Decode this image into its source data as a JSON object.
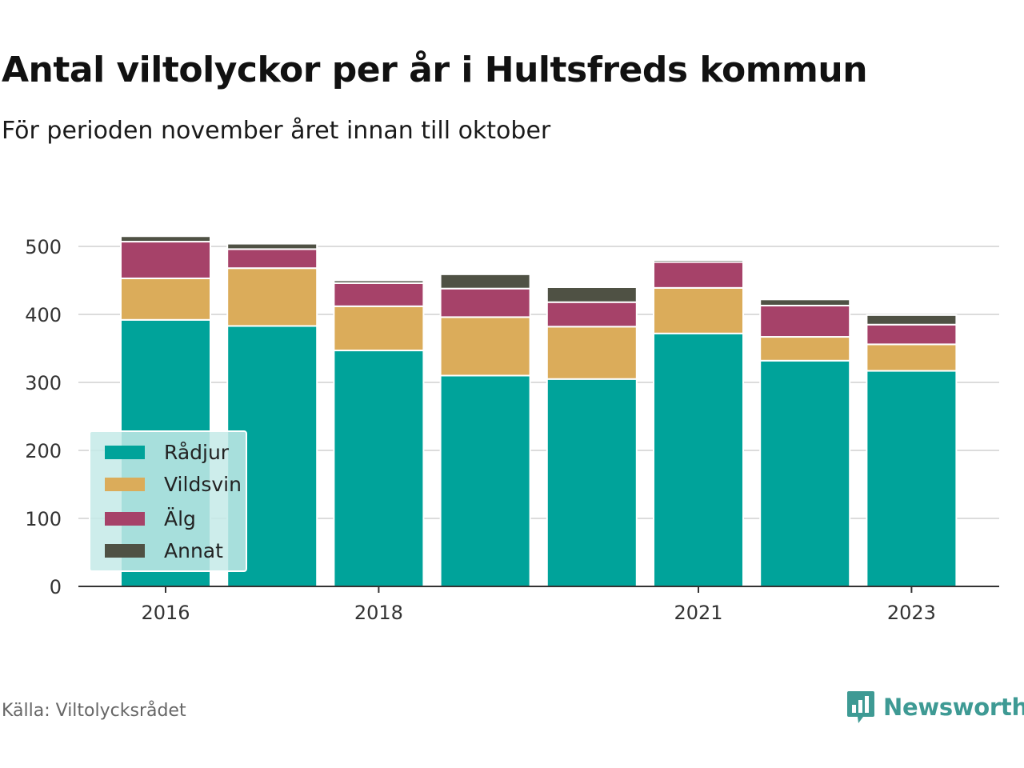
{
  "header": {
    "title": "Antal viltolyckor per år i Hultsfreds kommun",
    "subtitle": "För perioden november året innan till oktober"
  },
  "footer": {
    "source": "Källa: Viltolycksrådet",
    "brand": "Newsworthy",
    "brand_icon": "bar-chart-speech-bubble-icon",
    "brand_color": "#3e9a94"
  },
  "chart_data": {
    "type": "bar",
    "stacked": true,
    "categories": [
      "2016",
      "2017",
      "2018",
      "2019",
      "2020",
      "2021",
      "2022",
      "2023"
    ],
    "x_tick_labels": [
      "2016",
      "2018",
      "2021",
      "2023"
    ],
    "series": [
      {
        "name": "Rådjur",
        "color": "#00a39a",
        "values": [
          392,
          383,
          347,
          310,
          305,
          372,
          332,
          317
        ]
      },
      {
        "name": "Vildsvin",
        "color": "#dbac5a",
        "values": [
          61,
          85,
          65,
          86,
          77,
          67,
          35,
          39
        ]
      },
      {
        "name": "Älg",
        "color": "#a64269",
        "values": [
          54,
          28,
          34,
          42,
          36,
          38,
          46,
          29
        ]
      },
      {
        "name": "Annat",
        "color": "#4f5144",
        "values": [
          8,
          8,
          4,
          21,
          22,
          3,
          9,
          14
        ]
      }
    ],
    "yticks": [
      0,
      100,
      200,
      300,
      400,
      500
    ],
    "ylim": [
      0,
      540
    ],
    "grid": true,
    "legend_position": "bottom-left"
  }
}
